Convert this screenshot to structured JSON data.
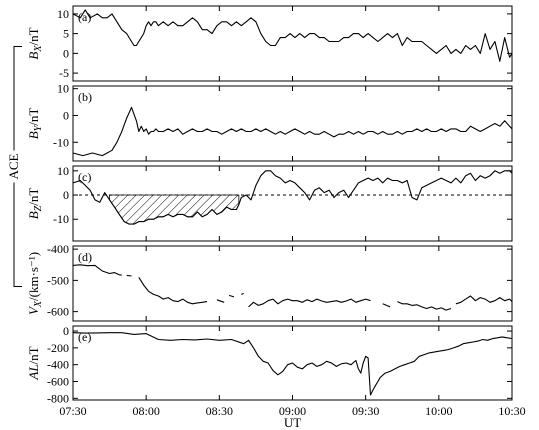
{
  "figure": {
    "x_title": "UT",
    "side_label": "ACE",
    "x_ticks": [
      "07:30",
      "08:00",
      "08:30",
      "09:00",
      "09:30",
      "10:00",
      "10:30"
    ],
    "x_tick_minutes": [
      0,
      30,
      60,
      90,
      120,
      150,
      180
    ]
  },
  "chart_data": [
    {
      "type": "line",
      "panel": "(a)",
      "ylabel": {
        "main": "B",
        "sub": "X",
        "unit": "/nT"
      },
      "ylim": [
        -7,
        12
      ],
      "yticks": [
        10,
        5,
        0,
        -5
      ],
      "x_unit": "minutes after 07:30 UT",
      "series": [
        {
          "x": [
            0,
            3,
            5,
            7,
            10,
            12,
            14,
            16,
            18,
            20,
            22,
            24,
            25,
            26,
            27,
            28,
            29,
            30,
            31,
            32,
            33,
            34,
            35,
            37,
            39,
            41,
            43,
            45,
            47,
            49,
            51,
            53,
            55,
            57,
            59,
            61,
            63,
            65,
            67,
            69,
            71,
            73,
            75,
            77,
            79,
            81,
            83,
            85,
            87,
            89,
            91,
            93,
            95,
            97,
            99,
            101,
            103,
            105,
            107,
            109,
            111,
            113,
            115,
            117,
            119,
            121,
            123,
            125,
            127,
            129,
            131,
            133,
            135,
            137,
            139,
            141,
            143,
            145,
            147,
            149,
            151,
            153,
            155,
            157,
            159,
            161,
            163,
            165,
            167,
            169,
            171,
            173,
            175,
            177,
            179,
            180
          ],
          "y": [
            10,
            9,
            11,
            9,
            10,
            9,
            9,
            10,
            8,
            6,
            5,
            3,
            2,
            2,
            3,
            4,
            5,
            7,
            8,
            7,
            8,
            8,
            7,
            8,
            7,
            8,
            7,
            7,
            8,
            9,
            8,
            6,
            6,
            5,
            7,
            8,
            8,
            7,
            8,
            7,
            8,
            9,
            8,
            5,
            3,
            2,
            2,
            4,
            4,
            5,
            4,
            5,
            4,
            5,
            5,
            4,
            4,
            3,
            3,
            3,
            4,
            4,
            5,
            5,
            4,
            5,
            4,
            3,
            4,
            5,
            4,
            5,
            2,
            4,
            3,
            3,
            3,
            2,
            1,
            0,
            1,
            2,
            0,
            1,
            0,
            2,
            1,
            2,
            0,
            5,
            1,
            3,
            -2,
            4,
            -1,
            0
          ]
        }
      ]
    },
    {
      "type": "line",
      "panel": "(b)",
      "ylabel": {
        "main": "B",
        "sub": "Y",
        "unit": "/nT"
      },
      "ylim": [
        -17,
        11
      ],
      "yticks": [
        10,
        0,
        -10
      ],
      "x_unit": "minutes after 07:30 UT",
      "series": [
        {
          "x": [
            0,
            4,
            8,
            12,
            14,
            16,
            18,
            20,
            22,
            24,
            26,
            27,
            28,
            29,
            30,
            31,
            32,
            33,
            34,
            35,
            37,
            39,
            41,
            43,
            45,
            47,
            49,
            51,
            53,
            55,
            57,
            59,
            61,
            63,
            65,
            67,
            69,
            71,
            73,
            75,
            77,
            79,
            81,
            83,
            85,
            87,
            89,
            91,
            93,
            95,
            97,
            99,
            101,
            103,
            105,
            107,
            109,
            111,
            113,
            115,
            117,
            119,
            121,
            123,
            125,
            127,
            129,
            131,
            133,
            135,
            137,
            139,
            141,
            143,
            145,
            147,
            149,
            151,
            153,
            155,
            157,
            159,
            161,
            163,
            165,
            167,
            169,
            171,
            173,
            175,
            177,
            179,
            180
          ],
          "y": [
            -14,
            -15,
            -14,
            -15,
            -14,
            -13,
            -10,
            -6,
            -1,
            3,
            -2,
            -6,
            -4,
            -6,
            -5,
            -7,
            -6,
            -6,
            -5,
            -6,
            -6,
            -5,
            -6,
            -5,
            -7,
            -6,
            -5,
            -6,
            -6,
            -5,
            -6,
            -6,
            -7,
            -6,
            -5,
            -6,
            -5,
            -6,
            -6,
            -5,
            -6,
            -5,
            -6,
            -7,
            -6,
            -7,
            -6,
            -5,
            -6,
            -7,
            -6,
            -7,
            -7,
            -6,
            -7,
            -8,
            -7,
            -7,
            -6,
            -7,
            -6,
            -7,
            -6,
            -6,
            -7,
            -6,
            -7,
            -7,
            -6,
            -7,
            -6,
            -6,
            -5,
            -6,
            -5,
            -6,
            -6,
            -5,
            -6,
            -5,
            -5,
            -6,
            -6,
            -4,
            -5,
            -6,
            -5,
            -4,
            -3,
            -4,
            -2,
            -4,
            -5
          ]
        }
      ]
    },
    {
      "type": "line",
      "panel": "(c)",
      "ylabel": {
        "main": "B",
        "sub": "Z",
        "unit": "/nT"
      },
      "ylim": [
        -19,
        12
      ],
      "yticks": [
        10,
        0,
        -10
      ],
      "x_unit": "minutes after 07:30 UT",
      "shaded_interval": [
        15,
        68
      ],
      "series": [
        {
          "x": [
            0,
            3,
            5,
            7,
            9,
            11,
            13,
            15,
            17,
            19,
            21,
            23,
            25,
            27,
            29,
            31,
            33,
            35,
            37,
            39,
            41,
            43,
            45,
            47,
            49,
            51,
            53,
            55,
            57,
            59,
            61,
            63,
            65,
            67,
            68,
            69,
            71,
            73,
            75,
            77,
            79,
            81,
            83,
            85,
            87,
            89,
            91,
            93,
            95,
            97,
            99,
            101,
            103,
            105,
            107,
            109,
            111,
            113,
            115,
            117,
            119,
            121,
            123,
            125,
            127,
            129,
            131,
            133,
            135,
            137,
            139,
            141,
            143,
            145,
            147,
            149,
            151,
            153,
            155,
            157,
            159,
            161,
            163,
            165,
            167,
            169,
            171,
            173,
            175,
            177,
            179,
            180
          ],
          "y": [
            5,
            6,
            4,
            2,
            -2,
            -3,
            1,
            -2,
            -5,
            -8,
            -11,
            -12,
            -12,
            -11,
            -11,
            -10,
            -10,
            -9,
            -9,
            -8,
            -9,
            -8,
            -8,
            -9,
            -9,
            -7,
            -9,
            -8,
            -6,
            -8,
            -7,
            -5,
            -6,
            -6,
            -4,
            -1,
            0,
            -2,
            4,
            8,
            10,
            10,
            8,
            7,
            5,
            6,
            5,
            3,
            1,
            -2,
            2,
            3,
            1,
            2,
            -1,
            1,
            2,
            -1,
            2,
            5,
            6,
            7,
            6,
            7,
            5,
            7,
            6,
            6,
            5,
            6,
            -1,
            -2,
            3,
            4,
            5,
            6,
            7,
            6,
            5,
            7,
            5,
            8,
            9,
            6,
            8,
            7,
            8,
            10,
            9,
            10,
            10,
            9
          ]
        }
      ]
    },
    {
      "type": "line",
      "panel": "(d)",
      "ylabel": {
        "main": "V",
        "sub": "X",
        "unit": "/(km·s⁻¹)"
      },
      "ylim": [
        -630,
        -390
      ],
      "yticks": [
        -400,
        -500,
        -600
      ],
      "x_unit": "minutes after 07:30 UT",
      "series": [
        {
          "x": [
            0,
            3,
            6,
            9,
            12,
            15,
            17,
            19,
            20
          ],
          "y": [
            -452,
            -450,
            -453,
            -452,
            -470,
            -478,
            -475,
            -482,
            -483
          ]
        },
        {
          "x": [
            22,
            24
          ],
          "y": [
            -484,
            -486
          ]
        },
        {
          "x": [
            27,
            29,
            31,
            33,
            35,
            37,
            39,
            41,
            43,
            45,
            47,
            49,
            51,
            53,
            55
          ],
          "y": [
            -490,
            -515,
            -535,
            -545,
            -550,
            -560,
            -555,
            -565,
            -568,
            -560,
            -570,
            -575,
            -572,
            -570,
            -568
          ]
        },
        {
          "x": [
            59,
            62
          ],
          "y": [
            -562,
            -570
          ]
        },
        {
          "x": [
            64,
            66
          ],
          "y": [
            -548,
            -553
          ]
        },
        {
          "x": [
            69,
            70
          ],
          "y": [
            -545,
            -542
          ]
        },
        {
          "x": [
            72,
            74,
            76,
            78,
            80,
            82,
            84,
            86,
            88,
            90,
            92,
            94,
            96,
            98,
            100,
            102,
            104,
            106,
            108,
            110,
            112,
            114,
            116,
            118,
            120,
            122
          ],
          "y": [
            -585,
            -570,
            -580,
            -575,
            -565,
            -560,
            -575,
            -565,
            -560,
            -565,
            -565,
            -570,
            -562,
            -568,
            -560,
            -566,
            -570,
            -568,
            -565,
            -570,
            -566,
            -560,
            -570,
            -565,
            -560,
            -565
          ]
        },
        {
          "x": [
            127,
            130
          ],
          "y": [
            -575,
            -585
          ]
        },
        {
          "x": [
            133,
            135,
            137,
            139,
            141,
            143,
            145,
            147,
            149,
            151,
            153,
            155
          ],
          "y": [
            -568,
            -575,
            -575,
            -580,
            -578,
            -585,
            -590,
            -585,
            -592,
            -588,
            -595,
            -590
          ]
        },
        {
          "x": [
            157,
            159,
            161,
            163,
            165,
            167,
            169,
            171,
            173,
            175,
            177,
            179,
            180
          ],
          "y": [
            -575,
            -570,
            -560,
            -550,
            -565,
            -555,
            -560,
            -570,
            -565,
            -555,
            -565,
            -560,
            -568
          ]
        }
      ]
    },
    {
      "type": "line",
      "panel": "(e)",
      "ylabel": {
        "main": "AL",
        "unit": "/nT"
      },
      "ylim": [
        -820,
        60
      ],
      "yticks": [
        0,
        -200,
        -400,
        -600,
        -800
      ],
      "x_unit": "minutes after 07:30 UT",
      "series": [
        {
          "x": [
            0,
            5,
            10,
            15,
            20,
            25,
            30,
            35,
            40,
            45,
            50,
            55,
            60,
            65,
            70,
            72,
            74,
            76,
            78,
            80,
            82,
            84,
            86,
            88,
            90,
            92,
            94,
            96,
            98,
            100,
            102,
            104,
            106,
            108,
            110,
            112,
            114,
            116,
            117,
            118,
            119,
            120,
            121,
            122,
            123,
            124,
            125,
            126,
            128,
            130,
            132,
            134,
            136,
            138,
            140,
            142,
            144,
            146,
            148,
            150,
            152,
            154,
            156,
            158,
            160,
            162,
            164,
            166,
            168,
            170,
            172,
            174,
            176,
            178,
            180
          ],
          "y": [
            -20,
            -25,
            -22,
            -20,
            -20,
            -40,
            -30,
            -100,
            -110,
            -100,
            -105,
            -95,
            -110,
            -100,
            -150,
            -110,
            -200,
            -300,
            -360,
            -380,
            -470,
            -520,
            -480,
            -400,
            -380,
            -430,
            -450,
            -400,
            -380,
            -420,
            -400,
            -360,
            -380,
            -420,
            -390,
            -380,
            -400,
            -350,
            -450,
            -500,
            -380,
            -300,
            -320,
            -760,
            -700,
            -650,
            -600,
            -550,
            -500,
            -480,
            -450,
            -420,
            -400,
            -380,
            -360,
            -300,
            -280,
            -260,
            -250,
            -240,
            -230,
            -220,
            -200,
            -180,
            -150,
            -140,
            -130,
            -120,
            -100,
            -110,
            -90,
            -80,
            -70,
            -80,
            -90
          ]
        }
      ]
    }
  ]
}
